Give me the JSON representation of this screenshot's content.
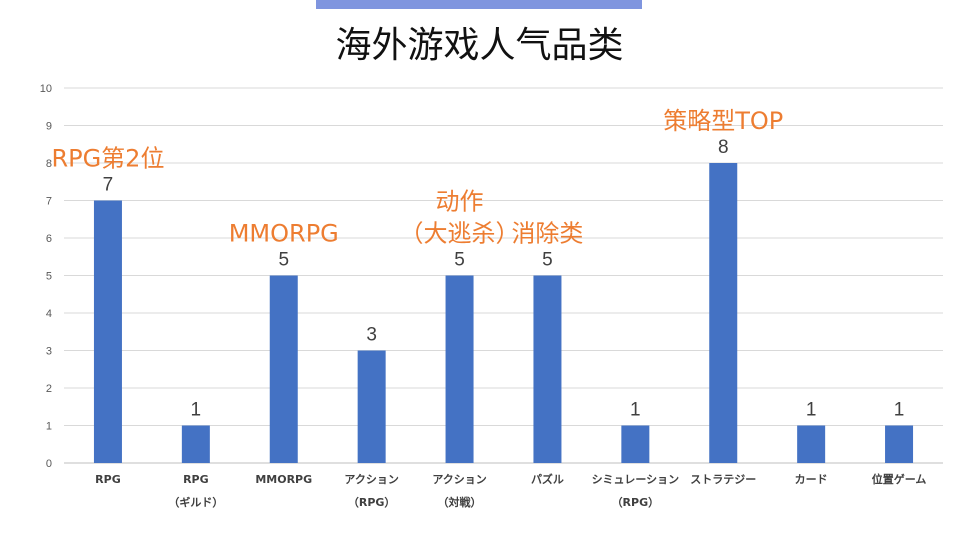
{
  "title": "海外游戏人气品类",
  "colors": {
    "bar": "#4472c4",
    "annotation": "#ed7d31",
    "top_bar": "#7f95df",
    "grid": "#d9d9d9"
  },
  "chart_data": {
    "type": "bar",
    "title": "海外游戏人气品类",
    "categories": [
      [
        "RPG"
      ],
      [
        "RPG",
        "（ギルド）"
      ],
      [
        "MMORPG"
      ],
      [
        "アクション",
        "（RPG）"
      ],
      [
        "アクション",
        "（対戦）"
      ],
      [
        "パズル"
      ],
      [
        "シミュレーション",
        "（RPG）"
      ],
      [
        "ストラテジー"
      ],
      [
        "カード"
      ],
      [
        "位置ゲーム"
      ]
    ],
    "values": [
      7,
      1,
      5,
      3,
      5,
      5,
      1,
      8,
      1,
      1
    ],
    "ylim": [
      0,
      10
    ],
    "yticks": [
      0,
      1,
      2,
      3,
      4,
      5,
      6,
      7,
      8,
      9,
      10
    ],
    "grid": true,
    "legend": "none",
    "annotations": [
      {
        "category_index": 0,
        "lines": [
          "RPG第2位"
        ]
      },
      {
        "category_index": 2,
        "lines": [
          "MMORPG"
        ]
      },
      {
        "category_index": 4,
        "lines": [
          "动作",
          "（大逃杀）"
        ]
      },
      {
        "category_index": 5,
        "lines": [
          "消除类"
        ]
      },
      {
        "category_index": 7,
        "lines": [
          "策略型TOP"
        ]
      }
    ]
  }
}
